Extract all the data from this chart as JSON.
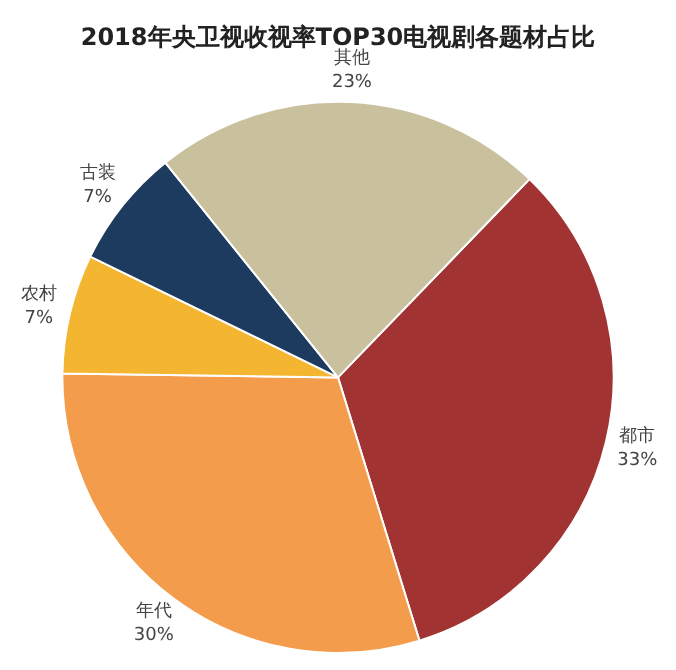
{
  "chart_data": {
    "type": "pie",
    "title": "2018年央卫视收视率TOP30电视剧各题材占比",
    "categories": [
      "都市",
      "年代",
      "农村",
      "古装",
      "其他"
    ],
    "values": [
      33,
      30,
      7,
      7,
      23
    ],
    "value_labels": [
      "33%",
      "30%",
      "7%",
      "7%",
      "23%"
    ],
    "colors": [
      "#a13333",
      "#f39c4c",
      "#f4b630",
      "#1d3a5f",
      "#c9c09e"
    ],
    "legend": false
  }
}
